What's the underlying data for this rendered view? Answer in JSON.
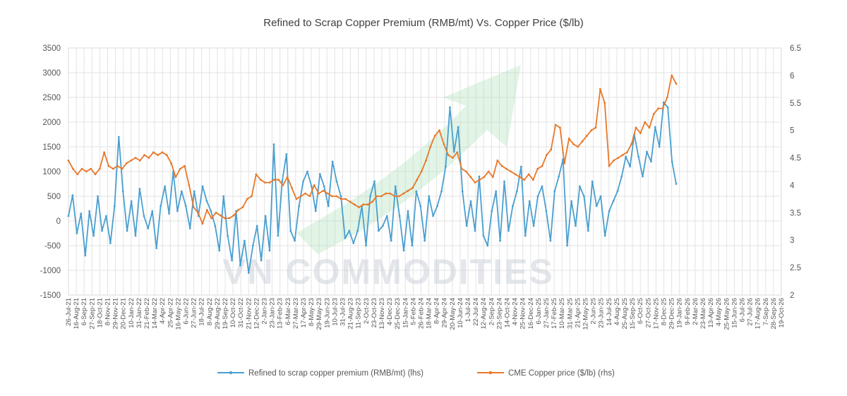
{
  "chart_data": {
    "type": "line",
    "title": "Refined to Scrap Copper Premium (RMB/mt) Vs. Copper Price ($/lb)",
    "watermark": "VN COMMODITIES",
    "colors": {
      "premium": "#4a9fd0",
      "price": "#e8782a",
      "grid": "#e3e3e3",
      "axis_text": "#555555",
      "watermark_text": "#c9ced6",
      "watermark_arrow": "#a8e0b8"
    },
    "ylim_left": [
      -1500,
      3500
    ],
    "ylim_right": [
      2,
      6.5
    ],
    "yticks_left": [
      "-1500",
      "-1000",
      "-500",
      "0",
      "500",
      "1000",
      "1500",
      "2000",
      "2500",
      "3000",
      "3500"
    ],
    "yticks_right": [
      "2",
      "2.5",
      "3",
      "3.5",
      "4",
      "4.5",
      "5",
      "5.5",
      "6",
      "6.5"
    ],
    "x_tick_labels": [
      "26-Jul-21",
      "16-Aug-21",
      "6-Sep-21",
      "27-Sep-21",
      "18-Oct-21",
      "8-Nov-21",
      "29-Nov-21",
      "20-Dec-21",
      "10-Jan-22",
      "31-Jan-22",
      "21-Feb-22",
      "14-Mar-22",
      "4-Apr-22",
      "25-Apr-22",
      "16-May-22",
      "6-Jun-22",
      "27-Jun-22",
      "18-Jul-22",
      "8-Aug-22",
      "29-Aug-22",
      "19-Sep-22",
      "10-Oct-22",
      "31-Oct-22",
      "21-Nov-22",
      "12-Dec-22",
      "2-Jan-23",
      "23-Jan-23",
      "13-Feb-23",
      "6-Mar-23",
      "27-Mar-23",
      "17-Apr-23",
      "8-May-23",
      "29-May-23",
      "19-Jun-23",
      "10-Jul-23",
      "31-Jul-23",
      "21-Aug-23",
      "11-Sep-23",
      "2-Oct-23",
      "23-Oct-23",
      "13-Nov-23",
      "4-Dec-23",
      "25-Dec-23",
      "15-Jan-24",
      "5-Feb-24",
      "26-Feb-24",
      "18-Mar-24",
      "8-Apr-24",
      "29-Apr-24",
      "20-May-24",
      "10-Jun-24",
      "1-Jul-24",
      "22-Jul-24",
      "12-Aug-24",
      "2-Sep-24",
      "23-Sep-24",
      "14-Oct-24",
      "4-Nov-24",
      "25-Nov-24",
      "16-Dec-24",
      "6-Jan-25",
      "27-Jan-25",
      "17-Feb-25",
      "10-Mar-25",
      "31-Mar-25",
      "21-Apr-25",
      "12-May-25",
      "2-Jun-25",
      "23-Jun-25",
      "14-Jul-25",
      "4-Aug-25",
      "25-Aug-25",
      "15-Sep-25",
      "6-Oct-25",
      "27-Oct-25",
      "17-Nov-25",
      "8-Dec-25",
      "29-Dec-25",
      "19-Jan-26",
      "9-Feb-26",
      "2-Mar-26",
      "23-Mar-26",
      "13-Apr-26",
      "4-May-26",
      "25-May-26",
      "15-Jun-26",
      "6-Jul-26",
      "27-Jul-26",
      "17-Aug-26",
      "7-Sep-26",
      "28-Sep-26",
      "19-Oct-26"
    ],
    "legend_position": "bottom",
    "series": [
      {
        "name": "Refined to scrap copper premium (RMB/mt) (lhs)",
        "axis": "left",
        "color": "#4a9fd0",
        "values": [
          100,
          520,
          -250,
          150,
          -700,
          200,
          -300,
          500,
          -200,
          100,
          -450,
          300,
          1700,
          600,
          -200,
          400,
          -300,
          650,
          100,
          -150,
          200,
          -550,
          300,
          700,
          150,
          1000,
          200,
          600,
          300,
          -150,
          600,
          100,
          700,
          400,
          200,
          -100,
          -600,
          500,
          -300,
          -800,
          200,
          -900,
          -400,
          -1050,
          -500,
          -100,
          -800,
          100,
          -600,
          1550,
          -300,
          800,
          1350,
          -200,
          -400,
          300,
          800,
          1000,
          700,
          200,
          950,
          700,
          300,
          1200,
          800,
          500,
          -350,
          -200,
          -450,
          -200,
          300,
          -500,
          500,
          800,
          -200,
          -100,
          100,
          -400,
          700,
          100,
          -600,
          200,
          -500,
          600,
          300,
          -400,
          500,
          100,
          300,
          600,
          1100,
          2300,
          1400,
          1900,
          600,
          -100,
          400,
          -200,
          900,
          -300,
          -500,
          200,
          600,
          -400,
          800,
          -200,
          300,
          600,
          1100,
          -300,
          400,
          -100,
          500,
          700,
          200,
          -400,
          600,
          900,
          1250,
          -500,
          400,
          -100,
          700,
          500,
          -200,
          800,
          300,
          500,
          -300,
          200,
          400,
          600,
          900,
          1300,
          1100,
          1750,
          1300,
          900,
          1400,
          1200,
          1900,
          1500,
          2400,
          2300,
          1200,
          750
        ]
      },
      {
        "name": "CME Copper price ($/lb) (rhs)",
        "axis": "right",
        "color": "#e8782a",
        "values": [
          4.45,
          4.3,
          4.2,
          4.3,
          4.25,
          4.3,
          4.2,
          4.3,
          4.6,
          4.35,
          4.3,
          4.35,
          4.3,
          4.4,
          4.45,
          4.5,
          4.45,
          4.55,
          4.5,
          4.6,
          4.55,
          4.6,
          4.55,
          4.4,
          4.15,
          4.3,
          4.35,
          4.0,
          3.6,
          3.5,
          3.3,
          3.55,
          3.4,
          3.5,
          3.45,
          3.4,
          3.4,
          3.45,
          3.55,
          3.6,
          3.75,
          3.8,
          4.2,
          4.1,
          4.05,
          4.05,
          4.1,
          4.1,
          4.0,
          4.15,
          3.95,
          3.75,
          3.8,
          3.85,
          3.8,
          4.0,
          3.85,
          3.9,
          3.85,
          3.8,
          3.8,
          3.75,
          3.75,
          3.7,
          3.65,
          3.6,
          3.65,
          3.65,
          3.7,
          3.8,
          3.8,
          3.85,
          3.85,
          3.8,
          3.8,
          3.85,
          3.9,
          3.95,
          4.1,
          4.25,
          4.45,
          4.7,
          4.9,
          5.0,
          4.75,
          4.55,
          4.5,
          4.6,
          4.3,
          4.25,
          4.15,
          4.05,
          4.1,
          4.15,
          4.25,
          4.15,
          4.45,
          4.35,
          4.3,
          4.25,
          4.2,
          4.15,
          4.1,
          4.2,
          4.1,
          4.3,
          4.35,
          4.55,
          4.65,
          5.1,
          5.05,
          4.4,
          4.85,
          4.75,
          4.7,
          4.8,
          4.9,
          5.0,
          5.05,
          5.75,
          5.5,
          4.35,
          4.45,
          4.5,
          4.55,
          4.6,
          4.75,
          5.05,
          4.95,
          5.15,
          5.05,
          5.3,
          5.4,
          5.4,
          5.6,
          6.0,
          5.85
        ]
      }
    ]
  }
}
